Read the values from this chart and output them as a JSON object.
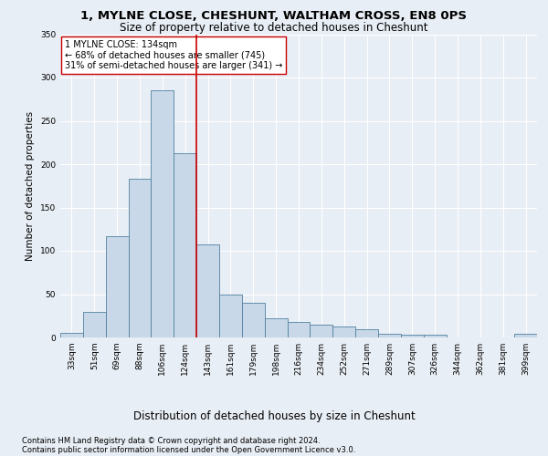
{
  "title": "1, MYLNE CLOSE, CHESHUNT, WALTHAM CROSS, EN8 0PS",
  "subtitle": "Size of property relative to detached houses in Cheshunt",
  "xlabel": "Distribution of detached houses by size in Cheshunt",
  "ylabel": "Number of detached properties",
  "categories": [
    "33sqm",
    "51sqm",
    "69sqm",
    "88sqm",
    "106sqm",
    "124sqm",
    "143sqm",
    "161sqm",
    "179sqm",
    "198sqm",
    "216sqm",
    "234sqm",
    "252sqm",
    "271sqm",
    "289sqm",
    "307sqm",
    "326sqm",
    "344sqm",
    "362sqm",
    "381sqm",
    "399sqm"
  ],
  "values": [
    5,
    30,
    117,
    183,
    285,
    213,
    107,
    50,
    40,
    22,
    18,
    15,
    13,
    9,
    4,
    3,
    3,
    0,
    0,
    0,
    4
  ],
  "bar_color": "#c8d8e8",
  "bar_edge_color": "#5080a0",
  "vline_color": "#cc0000",
  "vline_x_index": 5.5,
  "annotation_text": "1 MYLNE CLOSE: 134sqm\n← 68% of detached houses are smaller (745)\n31% of semi-detached houses are larger (341) →",
  "annotation_box_color": "#ffffff",
  "annotation_box_edge": "#cc0000",
  "background_color": "#e8eef5",
  "grid_color": "#ffffff",
  "footer1": "Contains HM Land Registry data © Crown copyright and database right 2024.",
  "footer2": "Contains public sector information licensed under the Open Government Licence v3.0.",
  "ylim": [
    0,
    350
  ],
  "yticks": [
    0,
    50,
    100,
    150,
    200,
    250,
    300,
    350
  ],
  "title_fontsize": 9.5,
  "subtitle_fontsize": 8.5,
  "xlabel_fontsize": 8.5,
  "ylabel_fontsize": 7.5,
  "tick_fontsize": 6.5,
  "annotation_fontsize": 7.0,
  "footer_fontsize": 6.0
}
